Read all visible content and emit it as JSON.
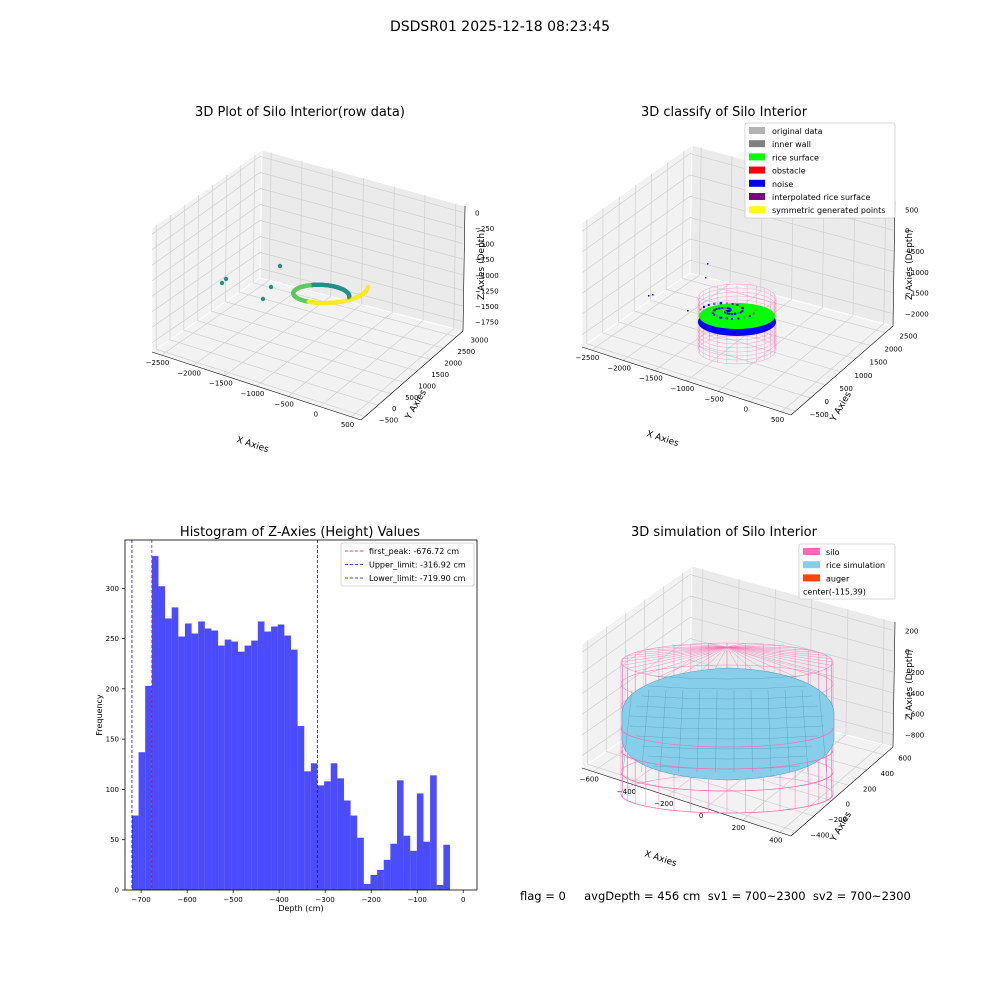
{
  "figure": {
    "suptitle": "DSDSR01 2025-12-18 08:23:45",
    "bottom_text": "flag = 0     avgDepth = 456 cm  sv1 = 700~2300  sv2 = 700~2300"
  },
  "chart_data": [
    {
      "id": "raw",
      "type": "scatter",
      "title": "3D Plot of Silo Interior(row data)",
      "xlabel": "X Axies",
      "ylabel": "Y Axies",
      "zlabel": "Z Axies (Depth)",
      "x_ticks": [
        "−2500",
        "−2000",
        "−1500",
        "−1000",
        "−500",
        "0",
        "500"
      ],
      "y_ticks": [
        "−500",
        "0",
        "500",
        "1000",
        "1500",
        "2000",
        "2500",
        "3000"
      ],
      "z_ticks": [
        "0",
        "−250",
        "−500",
        "−750",
        "−1000",
        "−1250",
        "−1500",
        "−1750"
      ],
      "colormap": [
        "#440154",
        "#21918c",
        "#5ec962",
        "#fde725"
      ]
    },
    {
      "id": "classify",
      "type": "scatter",
      "title": "3D classify of Silo Interior",
      "xlabel": "X Axies",
      "ylabel": "Y Axies",
      "zlabel": "Z Axies (Depth)",
      "x_ticks": [
        "−2500",
        "−2000",
        "−1500",
        "−1000",
        "−500",
        "0",
        "500"
      ],
      "y_ticks": [
        "−500",
        "0",
        "500",
        "1000",
        "1500",
        "2000",
        "2500"
      ],
      "z_ticks": [
        "500",
        "0",
        "−500",
        "−1000",
        "−1500",
        "−2000"
      ],
      "legend_position": "top-right",
      "legend": [
        {
          "label": "original data",
          "color": "#b3b3b3"
        },
        {
          "label": "inner wall",
          "color": "#808080"
        },
        {
          "label": "rice surface",
          "color": "#00ff00"
        },
        {
          "label": "obstacle",
          "color": "#ff0000"
        },
        {
          "label": "noise",
          "color": "#0000ff"
        },
        {
          "label": "interpolated rice surface",
          "color": "#800080"
        },
        {
          "label": "symmetric generated points",
          "color": "#ffff00"
        }
      ]
    },
    {
      "id": "histogram",
      "type": "bar",
      "title": "Histogram of Z-Axies (Height) Values",
      "xlabel": "Depth (cm)",
      "ylabel": "Frequency",
      "xlim": [
        -735,
        30
      ],
      "ylim": [
        0,
        348
      ],
      "x_ticks": [
        -700,
        -600,
        -500,
        -400,
        -300,
        -200,
        -100,
        0
      ],
      "y_ticks": [
        0,
        50,
        100,
        150,
        200,
        250,
        300
      ],
      "bar_color": "#0000ff",
      "bin_start": -719.9,
      "bin_width": 14.4,
      "values": [
        74,
        137,
        203,
        332,
        302,
        270,
        281,
        252,
        265,
        255,
        267,
        260,
        258,
        243,
        249,
        247,
        237,
        243,
        248,
        267,
        257,
        262,
        264,
        253,
        239,
        163,
        118,
        126,
        104,
        108,
        126,
        111,
        89,
        74,
        52,
        6,
        15,
        20,
        30,
        46,
        109,
        54,
        39,
        96,
        48,
        114,
        5,
        45
      ],
      "vlines": [
        {
          "label": "first_peak: -676.72 cm",
          "x": -676.72,
          "color": "#ff0000"
        },
        {
          "label": "Upper_limit: -316.92 cm",
          "x": -316.92,
          "color": "#0000ff"
        },
        {
          "label": "Lower_limit: -719.90 cm",
          "x": -719.9,
          "color": "#0000ff"
        }
      ],
      "legend_position": "top-right"
    },
    {
      "id": "simulation",
      "type": "scatter",
      "title": "3D simulation of Silo Interior",
      "xlabel": "X Axies",
      "ylabel": "Y Axies",
      "zlabel": "Z Axies (Depth)",
      "x_ticks": [
        "−600",
        "−400",
        "−200",
        "0",
        "200",
        "400"
      ],
      "y_ticks": [
        "−400",
        "−200",
        "0",
        "200",
        "400",
        "600"
      ],
      "z_ticks": [
        "200",
        "0",
        "−200",
        "−400",
        "−600",
        "−800"
      ],
      "legend_position": "top-right",
      "legend": [
        {
          "label": "silo",
          "color": "#ff69b4"
        },
        {
          "label": "rice simulation",
          "color": "#87ceeb"
        },
        {
          "label": "auger",
          "color": "#ff4500"
        },
        {
          "label": "center(-115,39)",
          "color": ""
        }
      ]
    }
  ]
}
